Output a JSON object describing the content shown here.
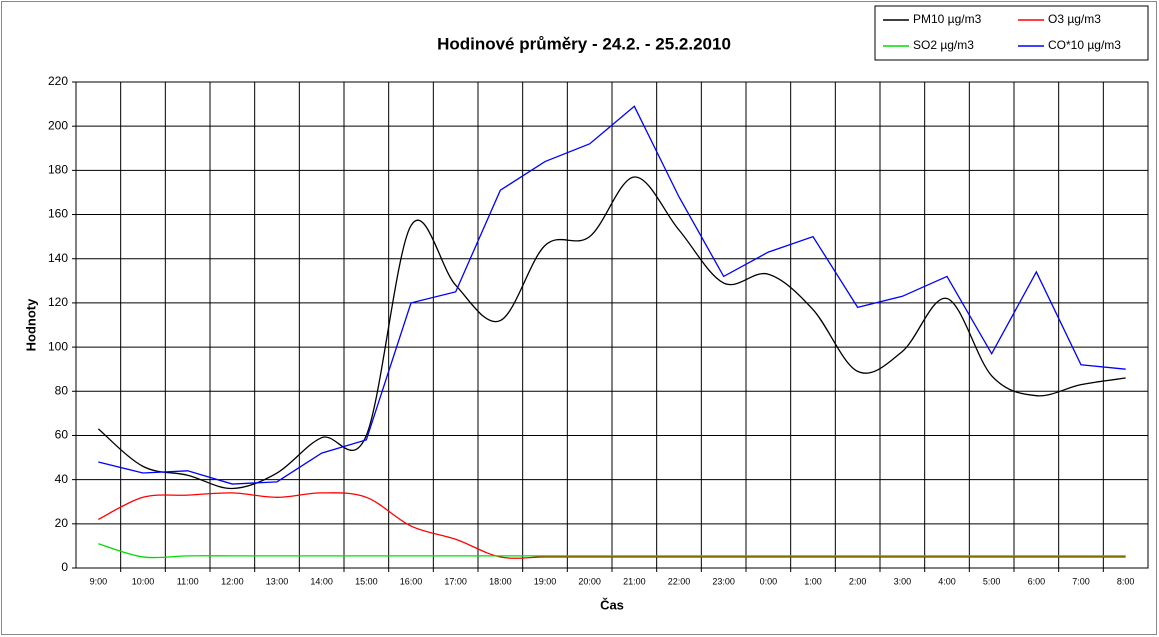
{
  "chart_data": {
    "type": "line",
    "title": "Hodinové průměry -   24.2. - 25.2.2010",
    "x_label": "Čas",
    "y_label": "Hodnoty",
    "categories": [
      "9:00",
      "10:00",
      "11:00",
      "12:00",
      "13:00",
      "14:00",
      "15:00",
      "16:00",
      "17:00",
      "18:00",
      "19:00",
      "20:00",
      "21:00",
      "22:00",
      "23:00",
      "0:00",
      "1:00",
      "2:00",
      "3:00",
      "4:00",
      "5:00",
      "6:00",
      "7:00",
      "8:00"
    ],
    "series": [
      {
        "name": "PM10 µg/m3",
        "color": "#000000",
        "smooth": true,
        "values": [
          63,
          46,
          42,
          36,
          43,
          59,
          60,
          155,
          128,
          112,
          146,
          150,
          177,
          153,
          129,
          133,
          117,
          89,
          98,
          122,
          87,
          78,
          83,
          86
        ]
      },
      {
        "name": "O3 µg/m3",
        "color": "#ff0000",
        "smooth": true,
        "values": [
          22,
          32,
          33,
          34,
          32,
          34,
          32,
          19,
          13,
          5,
          5,
          5,
          5,
          5,
          5,
          5,
          5,
          5,
          5,
          5,
          5,
          5,
          5,
          5
        ]
      },
      {
        "name": "SO2 µg/m3",
        "color": "#00dd00",
        "smooth": true,
        "values": [
          11,
          5,
          5.5,
          5.5,
          5.5,
          5.5,
          5.5,
          5.5,
          5.5,
          5.5,
          5.5,
          5.5,
          5.5,
          5.5,
          5.5,
          5.5,
          5.5,
          5.5,
          5.5,
          5.5,
          5.5,
          5.5,
          5.5,
          5.5
        ]
      },
      {
        "name": "CO*10 µg/m3",
        "color": "#0000ff",
        "smooth": false,
        "values": [
          48,
          43,
          44,
          38,
          39,
          52,
          58,
          120,
          125,
          171,
          184,
          192,
          209,
          168,
          132,
          143,
          150,
          118,
          123,
          132,
          97,
          134,
          92,
          90
        ]
      }
    ],
    "ylim": [
      0,
      220
    ],
    "yticks": [
      0,
      20,
      40,
      60,
      80,
      100,
      120,
      140,
      160,
      180,
      200,
      220
    ],
    "grid": true,
    "legend": "top-right"
  }
}
